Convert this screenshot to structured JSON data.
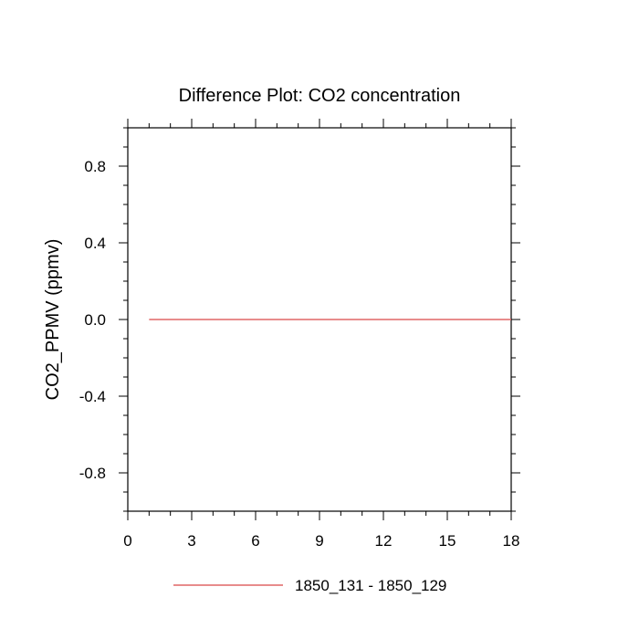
{
  "chart_data": {
    "type": "line",
    "title": "Difference Plot: CO2 concentration",
    "xlabel": "",
    "ylabel": "CO2_PPMV  (ppmv)",
    "xlim": [
      0,
      18
    ],
    "ylim": [
      -1.0,
      1.0
    ],
    "x_ticks": [
      0,
      3,
      6,
      9,
      12,
      15,
      18
    ],
    "x_tick_labels": [
      "0",
      "3",
      "6",
      "9",
      "12",
      "15",
      "18"
    ],
    "y_ticks": [
      -0.8,
      -0.4,
      0.0,
      0.4,
      0.8
    ],
    "y_tick_labels": [
      "-0.8",
      "-0.4",
      "0.0",
      "0.4",
      "0.8"
    ],
    "grid": false,
    "legend_position": "bottom",
    "series": [
      {
        "name": "1850_131 - 1850_129",
        "color": "#e06666",
        "x": [
          1,
          2,
          3,
          4,
          5,
          6,
          7,
          8,
          9,
          10,
          11,
          12,
          13,
          14,
          15,
          16,
          17,
          18
        ],
        "y": [
          0,
          0,
          0,
          0,
          0,
          0,
          0,
          0,
          0,
          0,
          0,
          0,
          0,
          0,
          0,
          0,
          0,
          0
        ]
      }
    ]
  }
}
